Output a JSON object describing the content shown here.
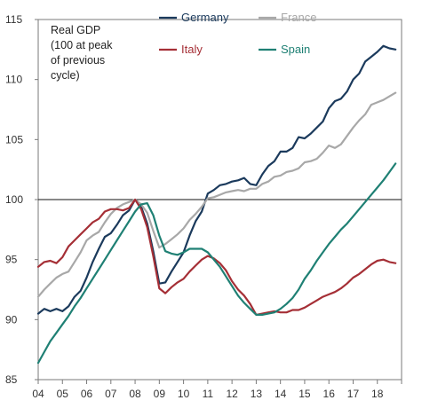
{
  "chart_data": {
    "type": "line",
    "title": "",
    "ylabel_lines": [
      "Real GDP",
      "(100 at peak",
      "of previous",
      "cycle)"
    ],
    "xlabel": "",
    "ylim": [
      85,
      115
    ],
    "xlim": [
      2004,
      2019.0
    ],
    "yticks": [
      85,
      90,
      95,
      100,
      105,
      110,
      115
    ],
    "xticks": [
      2004,
      2005,
      2006,
      2007,
      2008,
      2009,
      2010,
      2011,
      2012,
      2013,
      2014,
      2015,
      2016,
      2017,
      2018
    ],
    "xtick_labels": [
      "04",
      "05",
      "06",
      "07",
      "08",
      "09",
      "10",
      "11",
      "12",
      "13",
      "14",
      "15",
      "16",
      "17",
      "18"
    ],
    "yticks_labels": [
      "85",
      "90",
      "95",
      "100",
      "105",
      "110",
      "115"
    ],
    "reference_line": 100,
    "legend": {
      "position": "top",
      "entries": [
        "Germany",
        "France",
        "Italy",
        "Spain"
      ]
    },
    "series": [
      {
        "name": "Germany",
        "color": "#1b3a5c",
        "x": [
          2004.0,
          2004.25,
          2004.5,
          2004.75,
          2005.0,
          2005.25,
          2005.5,
          2005.75,
          2006.0,
          2006.25,
          2006.5,
          2006.75,
          2007.0,
          2007.25,
          2007.5,
          2007.75,
          2008.0,
          2008.25,
          2008.5,
          2008.75,
          2009.0,
          2009.25,
          2009.5,
          2009.75,
          2010.0,
          2010.25,
          2010.5,
          2010.75,
          2011.0,
          2011.25,
          2011.5,
          2011.75,
          2012.0,
          2012.25,
          2012.5,
          2012.75,
          2013.0,
          2013.25,
          2013.5,
          2013.75,
          2014.0,
          2014.25,
          2014.5,
          2014.75,
          2015.0,
          2015.25,
          2015.5,
          2015.75,
          2016.0,
          2016.25,
          2016.5,
          2016.75,
          2017.0,
          2017.25,
          2017.5,
          2017.75,
          2018.0,
          2018.25,
          2018.5,
          2018.75
        ],
        "y": [
          90.5,
          90.9,
          90.7,
          90.9,
          90.7,
          91.1,
          91.9,
          92.4,
          93.5,
          94.8,
          95.9,
          96.9,
          97.2,
          97.9,
          98.7,
          99.1,
          100.0,
          99.4,
          98.0,
          95.7,
          93.0,
          93.1,
          94.0,
          94.8,
          95.6,
          97.0,
          98.2,
          99.0,
          100.5,
          100.8,
          101.2,
          101.3,
          101.5,
          101.6,
          101.8,
          101.3,
          101.2,
          102.1,
          102.8,
          103.2,
          104.0,
          104.0,
          104.3,
          105.2,
          105.1,
          105.5,
          106.0,
          106.5,
          107.6,
          108.2,
          108.4,
          109.0,
          110.0,
          110.5,
          111.5,
          111.9,
          112.3,
          112.8,
          112.6,
          112.5
        ]
      },
      {
        "name": "France",
        "color": "#a8a8a8",
        "x": [
          2004.0,
          2004.25,
          2004.5,
          2004.75,
          2005.0,
          2005.25,
          2005.5,
          2005.75,
          2006.0,
          2006.25,
          2006.5,
          2006.75,
          2007.0,
          2007.25,
          2007.5,
          2007.75,
          2008.0,
          2008.25,
          2008.5,
          2008.75,
          2009.0,
          2009.25,
          2009.5,
          2009.75,
          2010.0,
          2010.25,
          2010.5,
          2010.75,
          2011.0,
          2011.25,
          2011.5,
          2011.75,
          2012.0,
          2012.25,
          2012.5,
          2012.75,
          2013.0,
          2013.25,
          2013.5,
          2013.75,
          2014.0,
          2014.25,
          2014.5,
          2014.75,
          2015.0,
          2015.25,
          2015.5,
          2015.75,
          2016.0,
          2016.25,
          2016.5,
          2016.75,
          2017.0,
          2017.25,
          2017.5,
          2017.75,
          2018.0,
          2018.25,
          2018.5,
          2018.75
        ],
        "y": [
          91.9,
          92.5,
          93.0,
          93.5,
          93.8,
          94.0,
          94.8,
          95.6,
          96.6,
          97.0,
          97.3,
          98.1,
          98.8,
          99.3,
          99.6,
          99.8,
          100.0,
          99.6,
          98.9,
          97.4,
          96.0,
          96.3,
          96.7,
          97.1,
          97.6,
          98.3,
          98.8,
          99.4,
          100.1,
          100.2,
          100.4,
          100.6,
          100.7,
          100.8,
          100.7,
          100.9,
          100.9,
          101.3,
          101.5,
          101.9,
          102.0,
          102.3,
          102.4,
          102.6,
          103.1,
          103.2,
          103.4,
          103.9,
          104.5,
          104.3,
          104.6,
          105.3,
          106.0,
          106.6,
          107.1,
          107.9,
          108.1,
          108.3,
          108.6,
          108.9
        ]
      },
      {
        "name": "Italy",
        "color": "#a52f36",
        "x": [
          2004.0,
          2004.25,
          2004.5,
          2004.75,
          2005.0,
          2005.25,
          2005.5,
          2005.75,
          2006.0,
          2006.25,
          2006.5,
          2006.75,
          2007.0,
          2007.25,
          2007.5,
          2007.75,
          2008.0,
          2008.25,
          2008.5,
          2008.75,
          2009.0,
          2009.25,
          2009.5,
          2009.75,
          2010.0,
          2010.25,
          2010.5,
          2010.75,
          2011.0,
          2011.25,
          2011.5,
          2011.75,
          2012.0,
          2012.25,
          2012.5,
          2012.75,
          2013.0,
          2013.25,
          2013.5,
          2013.75,
          2014.0,
          2014.25,
          2014.5,
          2014.75,
          2015.0,
          2015.25,
          2015.5,
          2015.75,
          2016.0,
          2016.25,
          2016.5,
          2016.75,
          2017.0,
          2017.25,
          2017.5,
          2017.75,
          2018.0,
          2018.25,
          2018.5,
          2018.75
        ],
        "y": [
          94.4,
          94.8,
          94.9,
          94.7,
          95.2,
          96.1,
          96.6,
          97.1,
          97.6,
          98.1,
          98.4,
          99.0,
          99.2,
          99.2,
          99.1,
          99.3,
          100.0,
          99.2,
          97.7,
          95.3,
          92.6,
          92.2,
          92.7,
          93.1,
          93.4,
          94.0,
          94.5,
          95.0,
          95.3,
          95.1,
          94.7,
          94.1,
          93.2,
          92.5,
          92.0,
          91.3,
          90.4,
          90.5,
          90.6,
          90.7,
          90.6,
          90.6,
          90.8,
          90.8,
          91.0,
          91.3,
          91.6,
          91.9,
          92.1,
          92.3,
          92.6,
          93.0,
          93.5,
          93.8,
          94.2,
          94.6,
          94.9,
          95.0,
          94.8,
          94.7
        ]
      },
      {
        "name": "Spain",
        "color": "#1f8074",
        "x": [
          2004.0,
          2004.25,
          2004.5,
          2004.75,
          2005.0,
          2005.25,
          2005.5,
          2005.75,
          2006.0,
          2006.25,
          2006.5,
          2006.75,
          2007.0,
          2007.25,
          2007.5,
          2007.75,
          2008.0,
          2008.25,
          2008.5,
          2008.75,
          2009.0,
          2009.25,
          2009.5,
          2009.75,
          2010.0,
          2010.25,
          2010.5,
          2010.75,
          2011.0,
          2011.25,
          2011.5,
          2011.75,
          2012.0,
          2012.25,
          2012.5,
          2012.75,
          2013.0,
          2013.25,
          2013.5,
          2013.75,
          2014.0,
          2014.25,
          2014.5,
          2014.75,
          2015.0,
          2015.25,
          2015.5,
          2015.75,
          2016.0,
          2016.25,
          2016.5,
          2016.75,
          2017.0,
          2017.25,
          2017.5,
          2017.75,
          2018.0,
          2018.25,
          2018.5,
          2018.75
        ],
        "y": [
          86.4,
          87.3,
          88.2,
          88.9,
          89.6,
          90.3,
          91.1,
          91.8,
          92.6,
          93.4,
          94.2,
          95.0,
          95.8,
          96.6,
          97.4,
          98.2,
          99.0,
          99.6,
          99.7,
          98.7,
          97.0,
          95.7,
          95.5,
          95.4,
          95.6,
          95.9,
          95.9,
          95.9,
          95.6,
          95.0,
          94.4,
          93.6,
          92.8,
          92.0,
          91.4,
          90.9,
          90.4,
          90.4,
          90.5,
          90.6,
          90.9,
          91.3,
          91.8,
          92.5,
          93.4,
          94.1,
          94.9,
          95.6,
          96.3,
          96.9,
          97.5,
          98.0,
          98.6,
          99.2,
          99.8,
          100.4,
          101.0,
          101.6,
          102.3,
          103.0
        ]
      }
    ]
  }
}
